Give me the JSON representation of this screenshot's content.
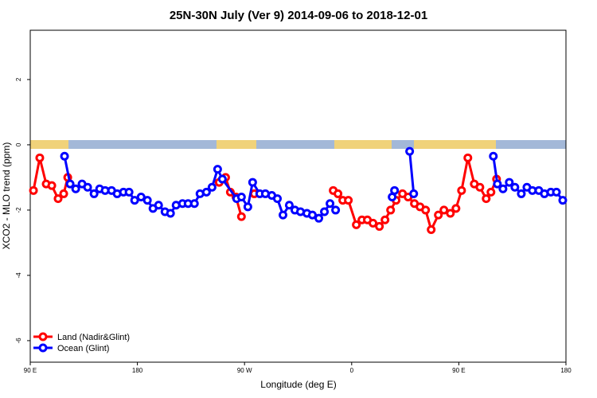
{
  "chart_data": {
    "type": "line",
    "title": "25N-30N July (Ver 9)   2014-09-06 to 2018-12-01",
    "x_label": "Longitude (deg E)",
    "y_label": "XCO2 - MLO trend (ppm)",
    "xlim": [
      90,
      540
    ],
    "ylim": [
      -6.66,
      3.51
    ],
    "xticks": [
      {
        "value": 90,
        "label": "90 E"
      },
      180,
      {
        "value": 270,
        "label": "90 W"
      },
      {
        "value": 360,
        "label": "0"
      },
      {
        "value": 450,
        "label": "90 E"
      },
      {
        "value": 540,
        "label": "180"
      }
    ],
    "yticks": [
      -6,
      -4,
      -2,
      0,
      2
    ],
    "legend": "bottom-left",
    "series": [
      {
        "name": "Land (Nadir&Glint)",
        "color": "#ff0000",
        "x": [
          92.7,
          98.0,
          103.4,
          108.1,
          113.4,
          118.1,
          121.5,
          null,
          248.7,
          254.1,
          258.1,
          262.8,
          267.4,
          null,
          278.2,
          null,
          344.5,
          348.5,
          352.5,
          357.2,
          363.9,
          368.6,
          373.2,
          377.9,
          383.3,
          388.0,
          392.7,
          397.3,
          402.7,
          407.4,
          412.7,
          417.4,
          422.1,
          426.8,
          432.8,
          437.5,
          442.9,
          447.6,
          452.3,
          457.6,
          463.0,
          467.7,
          473.0,
          477.0,
          481.7
        ],
        "values": [
          -1.4,
          -0.4,
          -1.2,
          -1.25,
          -1.65,
          -1.5,
          -1.0,
          null,
          -1.15,
          -1.0,
          -1.45,
          -1.6,
          -2.2,
          null,
          -1.5,
          null,
          -1.4,
          -1.5,
          -1.7,
          -1.7,
          -2.45,
          -2.3,
          -2.3,
          -2.4,
          -2.5,
          -2.3,
          -2.0,
          -1.7,
          -1.5,
          -1.6,
          -1.8,
          -1.9,
          -2.0,
          -2.6,
          -2.15,
          -2.0,
          -2.1,
          -1.95,
          -1.4,
          -0.4,
          -1.2,
          -1.3,
          -1.65,
          -1.45,
          -1.05
        ]
      },
      {
        "name": "Ocean (Glint)",
        "color": "#0000ff",
        "x": [
          118.8,
          123.5,
          128.2,
          133.5,
          138.2,
          143.6,
          148.3,
          152.9,
          158.3,
          163.0,
          168.3,
          173.0,
          177.7,
          183.1,
          188.4,
          193.1,
          197.8,
          203.2,
          207.8,
          212.5,
          217.9,
          222.6,
          227.9,
          232.6,
          238.0,
          242.7,
          247.4,
          251.4,
          263.4,
          267.4,
          272.8,
          276.8,
          282.8,
          287.5,
          292.9,
          297.6,
          302.3,
          307.6,
          312.3,
          317.0,
          322.4,
          327.0,
          332.4,
          337.1,
          341.8,
          346.5,
          null,
          394.0,
          396.0,
          null,
          408.7,
          412.1,
          null,
          479.0,
          482.4,
          487.1,
          492.4,
          497.1,
          502.5,
          507.2,
          511.8,
          517.2,
          521.9,
          527.3,
          532.0,
          537.3
        ],
        "values": [
          -0.35,
          -1.2,
          -1.35,
          -1.2,
          -1.3,
          -1.5,
          -1.35,
          -1.4,
          -1.4,
          -1.5,
          -1.45,
          -1.45,
          -1.7,
          -1.6,
          -1.7,
          -1.95,
          -1.85,
          -2.05,
          -2.1,
          -1.85,
          -1.8,
          -1.8,
          -1.8,
          -1.5,
          -1.45,
          -1.3,
          -0.75,
          -1.05,
          -1.65,
          -1.6,
          -1.9,
          -1.15,
          -1.5,
          -1.5,
          -1.55,
          -1.65,
          -2.15,
          -1.85,
          -2.0,
          -2.05,
          -2.1,
          -2.15,
          -2.25,
          -2.05,
          -1.8,
          -2.0,
          null,
          -1.6,
          -1.4,
          null,
          -0.2,
          -1.5,
          null,
          -0.35,
          -1.2,
          -1.35,
          -1.15,
          -1.3,
          -1.5,
          -1.3,
          -1.4,
          -1.4,
          -1.5,
          -1.45,
          -1.45,
          -1.7
        ]
      }
    ]
  }
}
